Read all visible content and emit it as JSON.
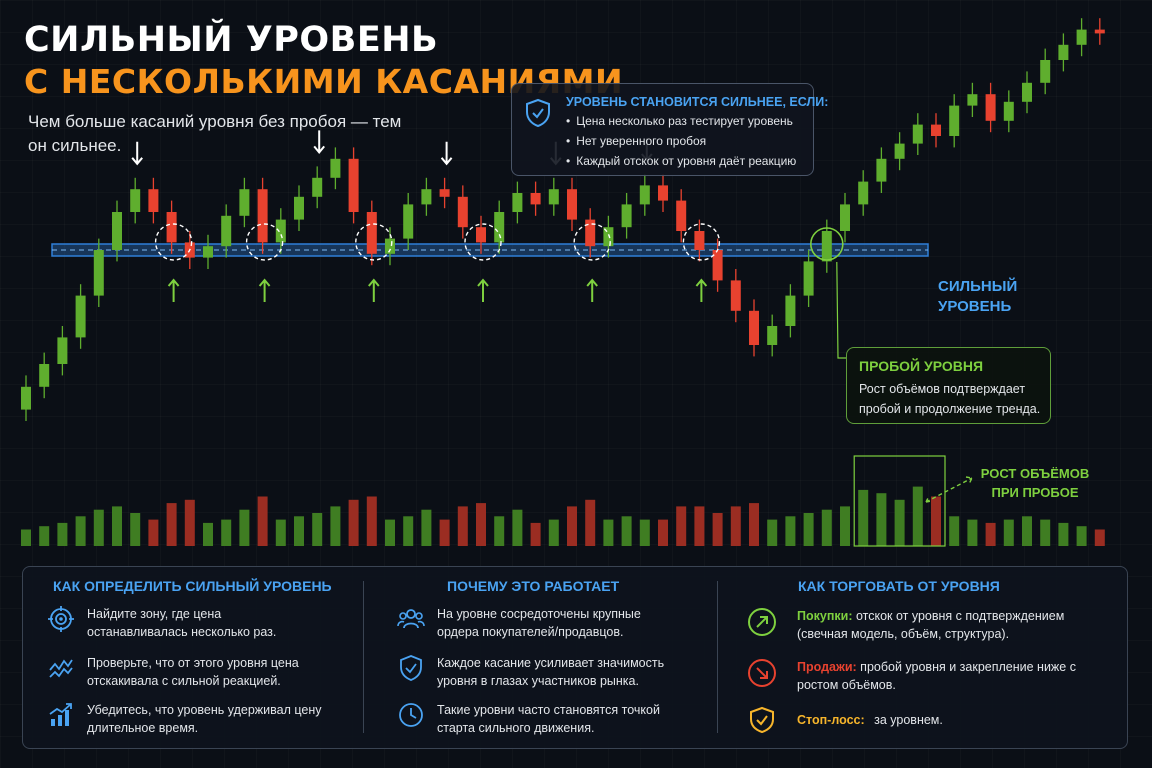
{
  "header": {
    "title_line1": "СИЛЬНЫЙ УРОВЕНЬ",
    "title_line2": "С НЕСКОЛЬКИМИ КАСАНИЯМИ",
    "subtitle": "Чем больше касаний уровня без пробоя — тем он сильнее."
  },
  "conditions": {
    "title": "УРОВЕНЬ СТАНОВИТСЯ СИЛЬНЕЕ, ЕСЛИ:",
    "items": [
      "Цена несколько раз тестирует уровень",
      "Нет уверенного пробоя",
      "Каждый отскок от уровня даёт реакцию"
    ],
    "icon": "shield-check-icon"
  },
  "chart_labels": {
    "level_line1": "СИЛЬНЫЙ",
    "level_line2": "УРОВЕНЬ",
    "breakout_title": "ПРОБОЙ УРОВНЯ",
    "breakout_text": "Рост объёмов подтверждает пробой и продолжение тренда.",
    "volume_line1": "РОСТ ОБЪЁМОВ",
    "volume_line2": "ПРИ ПРОБОЕ"
  },
  "chart_data": {
    "type": "candlestick",
    "level": 50,
    "ylim": [
      0,
      100
    ],
    "volume_max": 100,
    "touch_indices": [
      8,
      13,
      19,
      25,
      31,
      37
    ],
    "breakout_index": 44,
    "volume_highlight": [
      46,
      50
    ],
    "candles": [
      {
        "o": 8,
        "c": 14,
        "v": 25
      },
      {
        "o": 14,
        "c": 20,
        "v": 30
      },
      {
        "o": 20,
        "c": 27,
        "v": 35
      },
      {
        "o": 27,
        "c": 38,
        "v": 45
      },
      {
        "o": 38,
        "c": 50,
        "v": 55
      },
      {
        "o": 50,
        "c": 60,
        "v": 60
      },
      {
        "o": 60,
        "c": 66,
        "v": 50
      },
      {
        "o": 66,
        "c": 60,
        "v": 40
      },
      {
        "o": 60,
        "c": 52,
        "v": 65
      },
      {
        "o": 52,
        "c": 48,
        "v": 70
      },
      {
        "o": 48,
        "c": 51,
        "v": 35
      },
      {
        "o": 51,
        "c": 59,
        "v": 40
      },
      {
        "o": 59,
        "c": 66,
        "v": 55
      },
      {
        "o": 66,
        "c": 52,
        "v": 75
      },
      {
        "o": 52,
        "c": 58,
        "v": 40
      },
      {
        "o": 58,
        "c": 64,
        "v": 45
      },
      {
        "o": 64,
        "c": 69,
        "v": 50
      },
      {
        "o": 69,
        "c": 74,
        "v": 60
      },
      {
        "o": 74,
        "c": 60,
        "v": 70
      },
      {
        "o": 60,
        "c": 49,
        "v": 75
      },
      {
        "o": 49,
        "c": 53,
        "v": 40
      },
      {
        "o": 53,
        "c": 62,
        "v": 45
      },
      {
        "o": 62,
        "c": 66,
        "v": 55
      },
      {
        "o": 66,
        "c": 64,
        "v": 40
      },
      {
        "o": 64,
        "c": 56,
        "v": 60
      },
      {
        "o": 56,
        "c": 52,
        "v": 65
      },
      {
        "o": 52,
        "c": 60,
        "v": 45
      },
      {
        "o": 60,
        "c": 65,
        "v": 55
      },
      {
        "o": 65,
        "c": 62,
        "v": 35
      },
      {
        "o": 62,
        "c": 66,
        "v": 40
      },
      {
        "o": 66,
        "c": 58,
        "v": 60
      },
      {
        "o": 58,
        "c": 51,
        "v": 70
      },
      {
        "o": 51,
        "c": 56,
        "v": 40
      },
      {
        "o": 56,
        "c": 62,
        "v": 45
      },
      {
        "o": 62,
        "c": 67,
        "v": 40
      },
      {
        "o": 67,
        "c": 63,
        "v": 40
      },
      {
        "o": 63,
        "c": 55,
        "v": 60
      },
      {
        "o": 55,
        "c": 50,
        "v": 60
      },
      {
        "o": 50,
        "c": 42,
        "v": 50
      },
      {
        "o": 42,
        "c": 34,
        "v": 60
      },
      {
        "o": 34,
        "c": 25,
        "v": 65
      },
      {
        "o": 25,
        "c": 30,
        "v": 40
      },
      {
        "o": 30,
        "c": 38,
        "v": 45
      },
      {
        "o": 38,
        "c": 47,
        "v": 50
      },
      {
        "o": 47,
        "c": 55,
        "v": 55
      },
      {
        "o": 55,
        "c": 62,
        "v": 60
      },
      {
        "o": 62,
        "c": 68,
        "v": 85
      },
      {
        "o": 68,
        "c": 74,
        "v": 80
      },
      {
        "o": 74,
        "c": 78,
        "v": 70
      },
      {
        "o": 78,
        "c": 83,
        "v": 90
      },
      {
        "o": 83,
        "c": 80,
        "v": 75
      },
      {
        "o": 80,
        "c": 88,
        "v": 45
      },
      {
        "o": 88,
        "c": 91,
        "v": 40
      },
      {
        "o": 91,
        "c": 84,
        "v": 35
      },
      {
        "o": 84,
        "c": 89,
        "v": 40
      },
      {
        "o": 89,
        "c": 94,
        "v": 45
      },
      {
        "o": 94,
        "c": 100,
        "v": 40
      },
      {
        "o": 100,
        "c": 104,
        "v": 35
      },
      {
        "o": 104,
        "c": 108,
        "v": 30
      },
      {
        "o": 108,
        "c": 107,
        "v": 25
      }
    ]
  },
  "panel": {
    "col1": {
      "title": "КАК ОПРЕДЕЛИТЬ СИЛЬНЫЙ УРОВЕНЬ",
      "items": [
        {
          "icon": "target-icon",
          "text": "Найдите зону, где цена останавливалась несколько раз."
        },
        {
          "icon": "wave-chart-icon",
          "text": "Проверьте, что от этого уровня цена отскакивала с сильной реакцией."
        },
        {
          "icon": "bar-chart-icon",
          "text": "Убедитесь, что уровень удерживал цену длительное время."
        }
      ]
    },
    "col2": {
      "title": "ПОЧЕМУ ЭТО РАБОТАЕТ",
      "items": [
        {
          "icon": "people-icon",
          "text": "На уровне сосредоточены крупные ордера покупателей/продавцов."
        },
        {
          "icon": "shield-icon",
          "text": "Каждое касание усиливает значимость уровня в глазах участников рынка."
        },
        {
          "icon": "clock-icon",
          "text": "Такие уровни часто становятся точкой старта сильного движения."
        }
      ]
    },
    "col3": {
      "title": "КАК ТОРГОВАТЬ ОТ УРОВНЯ",
      "buy_label": "Покупки:",
      "buy_text": "отскок от уровня с подтверждением (свечная модель, объём, структура).",
      "sell_label": "Продажи:",
      "sell_text": "пробой уровня и закрепление ниже с ростом объёмов.",
      "stop_label": "Стоп-лосс:",
      "stop_text": "за уровнем."
    }
  },
  "colors": {
    "up": "#5fae2e",
    "down": "#e8422f",
    "level": "#2f7fd8",
    "accent_blue": "#4aa3f2",
    "accent_orange": "#f7941d",
    "accent_green": "#7ed03f"
  }
}
